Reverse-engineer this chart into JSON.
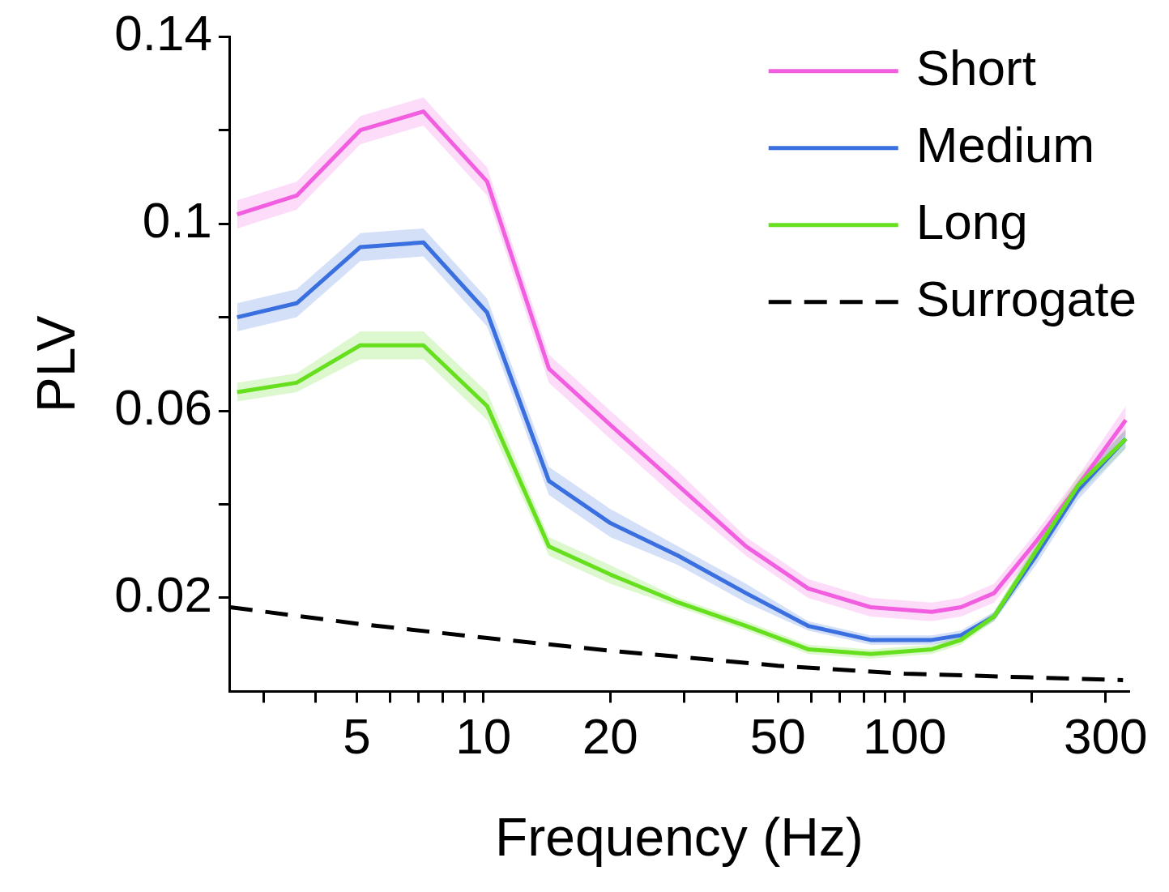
{
  "chart_data": {
    "type": "line",
    "xlabel": "Frequency (Hz)",
    "ylabel": "PLV",
    "log": "x",
    "grid": false,
    "legend": "top right",
    "marker": "none",
    "xlim": [
      2.5,
      340
    ],
    "ylim": [
      0,
      0.14
    ],
    "xticks": [
      {
        "value": 3,
        "label": null
      },
      {
        "value": 4,
        "label": null
      },
      5,
      {
        "value": 6,
        "label": null
      },
      {
        "value": 7,
        "label": null
      },
      {
        "value": 8,
        "label": null
      },
      {
        "value": 9,
        "label": null
      },
      10,
      20,
      {
        "value": 30,
        "label": null
      },
      {
        "value": 40,
        "label": null
      },
      50,
      {
        "value": 60,
        "label": null
      },
      {
        "value": 70,
        "label": null
      },
      {
        "value": 80,
        "label": null
      },
      {
        "value": 90,
        "label": null
      },
      100,
      {
        "value": 200,
        "label": null
      },
      300
    ],
    "yticks": [
      0.02,
      {
        "value": 0.04,
        "label": null
      },
      0.06,
      {
        "value": 0.08,
        "label": null
      },
      0.1,
      {
        "value": 0.12,
        "label": null
      },
      0.14
    ],
    "x": [
      2.6,
      3.6,
      5.1,
      7.2,
      10.2,
      14.3,
      20,
      29,
      42,
      59,
      83,
      116,
      136,
      163,
      205,
      258,
      335
    ],
    "series": [
      {
        "name": "Short",
        "color": "#f25ee0",
        "line_style": "solid",
        "values": [
          0.102,
          0.106,
          0.12,
          0.124,
          0.109,
          0.069,
          0.057,
          0.044,
          0.031,
          0.022,
          0.018,
          0.017,
          0.018,
          0.021,
          0.032,
          0.044,
          0.058
        ],
        "lower": [
          0.099,
          0.103,
          0.117,
          0.121,
          0.106,
          0.066,
          0.054,
          0.041,
          0.029,
          0.02,
          0.016,
          0.015,
          0.016,
          0.019,
          0.03,
          0.042,
          0.055
        ],
        "upper": [
          0.105,
          0.109,
          0.123,
          0.127,
          0.112,
          0.072,
          0.06,
          0.047,
          0.033,
          0.024,
          0.02,
          0.019,
          0.02,
          0.023,
          0.034,
          0.046,
          0.061
        ]
      },
      {
        "name": "Medium",
        "color": "#3a6fe0",
        "line_style": "solid",
        "values": [
          0.08,
          0.083,
          0.095,
          0.096,
          0.081,
          0.045,
          0.036,
          0.029,
          0.021,
          0.014,
          0.011,
          0.011,
          0.012,
          0.016,
          0.029,
          0.043,
          0.054
        ],
        "lower": [
          0.077,
          0.08,
          0.092,
          0.093,
          0.078,
          0.042,
          0.033,
          0.027,
          0.019,
          0.013,
          0.01,
          0.01,
          0.011,
          0.015,
          0.027,
          0.041,
          0.052
        ],
        "upper": [
          0.083,
          0.086,
          0.098,
          0.099,
          0.084,
          0.048,
          0.039,
          0.031,
          0.023,
          0.015,
          0.012,
          0.012,
          0.013,
          0.017,
          0.031,
          0.045,
          0.056
        ]
      },
      {
        "name": "Long",
        "color": "#66e01e",
        "line_style": "solid",
        "values": [
          0.064,
          0.066,
          0.074,
          0.074,
          0.061,
          0.031,
          0.025,
          0.019,
          0.014,
          0.009,
          0.008,
          0.009,
          0.011,
          0.016,
          0.03,
          0.044,
          0.054
        ],
        "lower": [
          0.062,
          0.064,
          0.071,
          0.071,
          0.058,
          0.029,
          0.023,
          0.018,
          0.013,
          0.008,
          0.007,
          0.008,
          0.01,
          0.015,
          0.028,
          0.042,
          0.052
        ],
        "upper": [
          0.066,
          0.068,
          0.077,
          0.077,
          0.064,
          0.033,
          0.027,
          0.02,
          0.015,
          0.01,
          0.009,
          0.01,
          0.012,
          0.017,
          0.032,
          0.046,
          0.056
        ]
      },
      {
        "name": "Surrogate",
        "color": "#000000",
        "line_style": "dashed",
        "x": [
          2.5,
          5,
          10,
          20,
          50,
          100,
          330
        ],
        "values": [
          0.018,
          0.0145,
          0.0115,
          0.0087,
          0.0055,
          0.0038,
          0.0024
        ]
      }
    ]
  }
}
